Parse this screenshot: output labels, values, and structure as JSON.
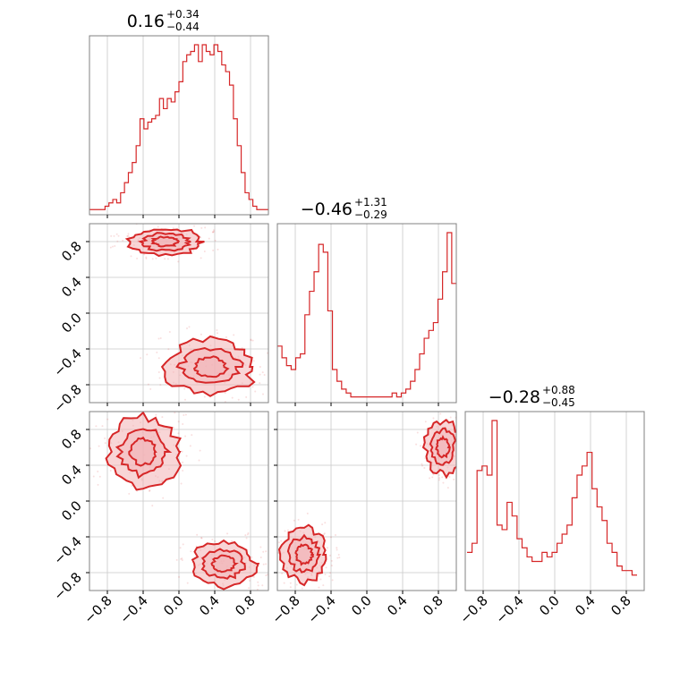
{
  "colors": {
    "accent": "#d62728",
    "fill": "#f2b2b5",
    "grid": "#c8c8c8",
    "frame": "#808080"
  },
  "chart_data": {
    "type": "corner",
    "parameters": 3,
    "ticks": [
      -0.8,
      -0.4,
      0.0,
      0.4,
      0.8
    ],
    "tick_labels": [
      "−0.8",
      "−0.4",
      "0.0",
      "0.4",
      "0.8"
    ],
    "titles": [
      {
        "median": "0.16",
        "plus": "+0.34",
        "minus": "−0.44"
      },
      {
        "median": "−0.46",
        "plus": "+1.31",
        "minus": "−0.29"
      },
      {
        "median": "−0.28",
        "plus": "+0.88",
        "minus": "−0.45"
      }
    ],
    "histograms": [
      {
        "range": [
          -1.0,
          1.0
        ],
        "counts": [
          1,
          1,
          1,
          1,
          2,
          3,
          4,
          3,
          6,
          9,
          12,
          15,
          20,
          28,
          25,
          27,
          28,
          29,
          34,
          31,
          34,
          33,
          36,
          39,
          45,
          47,
          48,
          50,
          45,
          50,
          48,
          47,
          50,
          48,
          44,
          42,
          38,
          28,
          20,
          12,
          6,
          4,
          2,
          1,
          1,
          1
        ]
      },
      {
        "range": [
          -1.0,
          1.0
        ],
        "counts": [
          14,
          11,
          9,
          8,
          11,
          12,
          22,
          28,
          33,
          40,
          38,
          23,
          8,
          5,
          3,
          2,
          1,
          1,
          1,
          1,
          1,
          1,
          1,
          1,
          1,
          2,
          1,
          2,
          3,
          5,
          8,
          12,
          16,
          18,
          20,
          26,
          33,
          43,
          30
        ]
      },
      {
        "range": [
          -0.98,
          0.92
        ],
        "counts": [
          8,
          10,
          26,
          27,
          25,
          37,
          14,
          13,
          19,
          16,
          11,
          9,
          7,
          6,
          6,
          8,
          7,
          8,
          10,
          12,
          14,
          20,
          25,
          27,
          30,
          22,
          18,
          15,
          10,
          8,
          5,
          4,
          4,
          3
        ]
      }
    ],
    "contours": [
      {
        "x_param": 1,
        "y_param": 2,
        "modes": [
          {
            "center": [
              -0.15,
              0.8
            ],
            "spread": [
              0.4,
              0.15
            ]
          },
          {
            "center": [
              0.35,
              -0.6
            ],
            "spread": [
              0.5,
              0.3
            ]
          }
        ]
      },
      {
        "x_param": 1,
        "y_param": 3,
        "modes": [
          {
            "center": [
              -0.4,
              0.55
            ],
            "spread": [
              0.4,
              0.4
            ]
          },
          {
            "center": [
              0.5,
              -0.7
            ],
            "spread": [
              0.35,
              0.25
            ]
          }
        ]
      },
      {
        "x_param": 2,
        "y_param": 3,
        "modes": [
          {
            "center": [
              -0.7,
              -0.6
            ],
            "spread": [
              0.25,
              0.3
            ]
          },
          {
            "center": [
              0.85,
              0.6
            ],
            "spread": [
              0.2,
              0.3
            ]
          }
        ]
      }
    ]
  }
}
